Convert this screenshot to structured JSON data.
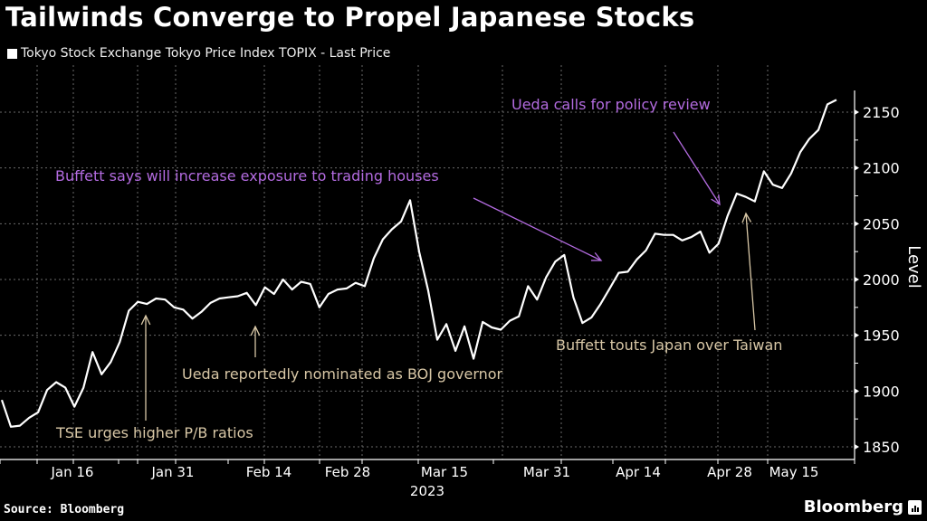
{
  "header": {
    "title": "Tailwinds Converge to Propel Japanese Stocks",
    "legend_label": "Tokyo Stock Exchange Tokyo Price Index TOPIX - Last Price"
  },
  "footer": {
    "source": "Source: Bloomberg",
    "brand": "Bloomberg"
  },
  "colors": {
    "background": "#000000",
    "line": "#ffffff",
    "annotation_purple": "#b36be0",
    "annotation_tan": "#d8c7a6",
    "grid": "#6a6a6a"
  },
  "chart_data": {
    "type": "line",
    "title": "Tailwinds Converge to Propel Japanese Stocks",
    "xlabel": "2023",
    "ylabel": "Level",
    "ylim": [
      1845,
      2170
    ],
    "yticks": [
      1850,
      1900,
      1950,
      2000,
      2050,
      2100,
      2150
    ],
    "grid": true,
    "legend_position": "top-left",
    "x_tick_labels": [
      "Jan 16",
      "Jan 31",
      "Feb 14",
      "Feb 28",
      "Mar 15",
      "Mar 31",
      "Apr 14",
      "Apr 28",
      "May 15"
    ],
    "year_label": "2023",
    "series": [
      {
        "name": "Tokyo Stock Exchange Tokyo Price Index TOPIX - Last Price",
        "values": [
          1892,
          1868,
          1869,
          1876,
          1881,
          1901,
          1908,
          1903,
          1886,
          1903,
          1935,
          1915,
          1926,
          1944,
          1972,
          1980,
          1978,
          1983,
          1982,
          1975,
          1973,
          1965,
          1971,
          1979,
          1983,
          1984,
          1985,
          1988,
          1977,
          1993,
          1987,
          2000,
          1991,
          1998,
          1996,
          1975,
          1987,
          1991,
          1992,
          1997,
          1994,
          2019,
          2036,
          2045,
          2052,
          2071,
          2025,
          1990,
          1946,
          1960,
          1936,
          1958,
          1929,
          1962,
          1957,
          1955,
          1963,
          1967,
          1994,
          1982,
          2002,
          2016,
          2022,
          1984,
          1961,
          1966,
          1978,
          1992,
          2006,
          2007,
          2018,
          2026,
          2041,
          2040,
          2040,
          2035,
          2038,
          2043,
          2024,
          2032,
          2057,
          2077,
          2074,
          2070,
          2097,
          2085,
          2082,
          2095,
          2114,
          2126,
          2134,
          2157,
          2161
        ]
      }
    ],
    "annotations": [
      {
        "text": "TSE urges higher P/B ratios",
        "color": "tan",
        "points_to": "Jan 24"
      },
      {
        "text": "Ueda reportedly nominated as BOJ governor",
        "color": "tan",
        "points_to": "Feb 10"
      },
      {
        "text": "Buffett says will increase exposure to trading houses",
        "color": "purple",
        "points_to": "Apr 11"
      },
      {
        "text": "Ueda calls for policy review",
        "color": "purple",
        "points_to": "Apr 28"
      },
      {
        "text": "Buffett touts Japan over Taiwan",
        "color": "tan",
        "points_to": "May 1"
      }
    ]
  }
}
